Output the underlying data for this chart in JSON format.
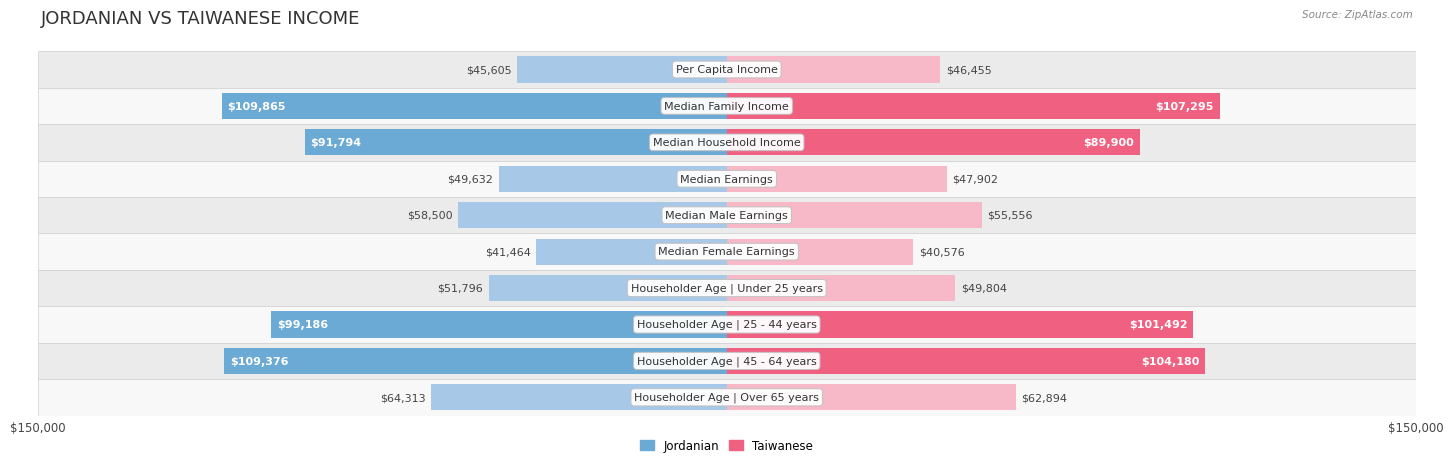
{
  "title": "JORDANIAN VS TAIWANESE INCOME",
  "source": "Source: ZipAtlas.com",
  "max_value": 150000,
  "categories": [
    "Per Capita Income",
    "Median Family Income",
    "Median Household Income",
    "Median Earnings",
    "Median Male Earnings",
    "Median Female Earnings",
    "Householder Age | Under 25 years",
    "Householder Age | 25 - 44 years",
    "Householder Age | 45 - 64 years",
    "Householder Age | Over 65 years"
  ],
  "jordanian": [
    45605,
    109865,
    91794,
    49632,
    58500,
    41464,
    51796,
    99186,
    109376,
    64313
  ],
  "taiwanese": [
    46455,
    107295,
    89900,
    47902,
    55556,
    40576,
    49804,
    101492,
    104180,
    62894
  ],
  "jordanian_labels": [
    "$45,605",
    "$109,865",
    "$91,794",
    "$49,632",
    "$58,500",
    "$41,464",
    "$51,796",
    "$99,186",
    "$109,376",
    "$64,313"
  ],
  "taiwanese_labels": [
    "$46,455",
    "$107,295",
    "$89,900",
    "$47,902",
    "$55,556",
    "$40,576",
    "$49,804",
    "$101,492",
    "$104,180",
    "$62,894"
  ],
  "color_jordanian_light": "#a8c8e8",
  "color_jordanian_dark": "#6aaad4",
  "color_taiwanese_light": "#f7b8c8",
  "color_taiwanese_dark": "#f06080",
  "bg_row_light": "#ebebeb",
  "bg_row_white": "#f8f8f8",
  "bar_height": 0.72,
  "title_fontsize": 13,
  "label_fontsize": 8,
  "axis_fontsize": 8.5,
  "inside_label_threshold": 0.45
}
